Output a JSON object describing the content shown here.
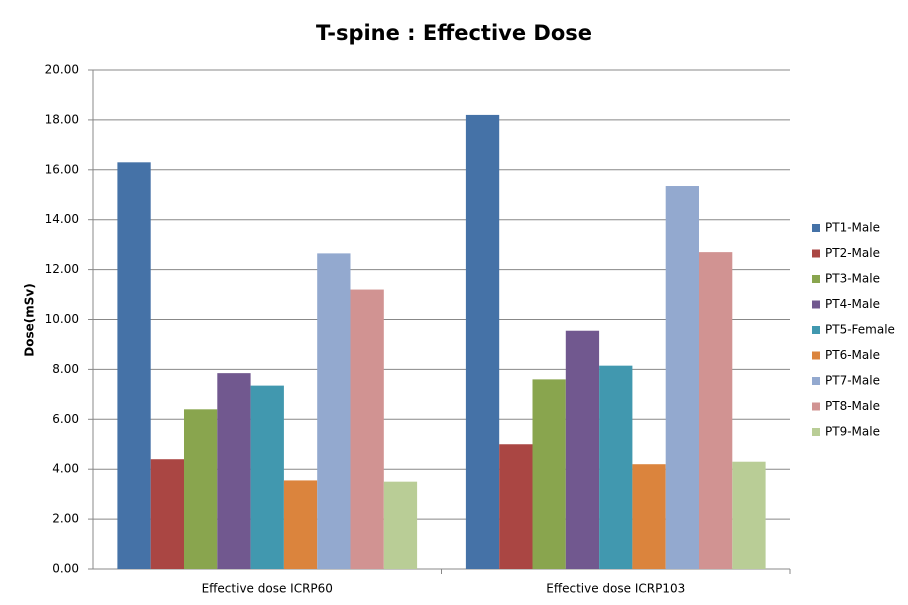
{
  "chart_data": {
    "type": "bar",
    "title": "T-spine : Effective Dose",
    "y_label": "Dose(mSv)",
    "categories": [
      "Effective dose ICRP60",
      "Effective dose ICRP103"
    ],
    "series": [
      {
        "name": "PT1-Male",
        "color": "#4572A7",
        "values": [
          16.3,
          18.2
        ]
      },
      {
        "name": "PT2-Male",
        "color": "#AA4643",
        "values": [
          4.4,
          5.0
        ]
      },
      {
        "name": "PT3-Male",
        "color": "#89A54E",
        "values": [
          6.4,
          7.6
        ]
      },
      {
        "name": "PT4-Male",
        "color": "#71588F",
        "values": [
          7.85,
          9.55
        ]
      },
      {
        "name": "PT5-Female",
        "color": "#4198AF",
        "values": [
          7.35,
          8.15
        ]
      },
      {
        "name": "PT6-Male",
        "color": "#DB843D",
        "values": [
          3.55,
          4.2
        ]
      },
      {
        "name": "PT7-Male",
        "color": "#93A9CF",
        "values": [
          12.65,
          15.35
        ]
      },
      {
        "name": "PT8-Male",
        "color": "#D19392",
        "values": [
          11.2,
          12.7
        ]
      },
      {
        "name": "PT9-Male",
        "color": "#B9CD96",
        "values": [
          3.5,
          4.3
        ]
      }
    ],
    "ylim": [
      0,
      20
    ],
    "yticks": [
      {
        "value": 0,
        "label": "0.00"
      },
      {
        "value": 2,
        "label": "2.00"
      },
      {
        "value": 4,
        "label": "4.00"
      },
      {
        "value": 6,
        "label": "6.00"
      },
      {
        "value": 8,
        "label": "8.00"
      },
      {
        "value": 10,
        "label": "10.00"
      },
      {
        "value": 12,
        "label": "12.00"
      },
      {
        "value": 14,
        "label": "14.00"
      },
      {
        "value": 16,
        "label": "16.00"
      },
      {
        "value": 18,
        "label": "18.00"
      },
      {
        "value": 20,
        "label": "20.00"
      }
    ],
    "grid": true,
    "legend": "right"
  }
}
